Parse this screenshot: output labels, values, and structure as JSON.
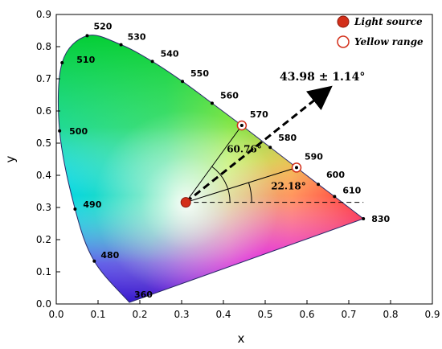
{
  "chart_data": {
    "type": "scatter",
    "xlabel": "x",
    "ylabel": "y",
    "xlim": [
      0.0,
      0.9
    ],
    "ylim": [
      0.0,
      0.9
    ],
    "x_ticks": [
      "0.0",
      "0.1",
      "0.2",
      "0.3",
      "0.4",
      "0.5",
      "0.6",
      "0.7",
      "0.8",
      "0.9"
    ],
    "y_ticks": [
      "0.0",
      "0.1",
      "0.2",
      "0.3",
      "0.4",
      "0.5",
      "0.6",
      "0.7",
      "0.8",
      "0.9"
    ],
    "grid": false,
    "legend_position": "top-right",
    "legend": [
      "Light source",
      "Yellow range"
    ],
    "locus_points": [
      {
        "label": "360",
        "x": 0.175,
        "y": 0.005
      },
      {
        "label": "480",
        "x": 0.091,
        "y": 0.133
      },
      {
        "label": "490",
        "x": 0.045,
        "y": 0.295
      },
      {
        "label": "500",
        "x": 0.008,
        "y": 0.538
      },
      {
        "label": "510",
        "x": 0.014,
        "y": 0.75
      },
      {
        "label": "520",
        "x": 0.074,
        "y": 0.834
      },
      {
        "label": "530",
        "x": 0.155,
        "y": 0.806
      },
      {
        "label": "540",
        "x": 0.23,
        "y": 0.754
      },
      {
        "label": "550",
        "x": 0.302,
        "y": 0.692
      },
      {
        "label": "560",
        "x": 0.373,
        "y": 0.624
      },
      {
        "label": "570",
        "x": 0.444,
        "y": 0.555
      },
      {
        "label": "580",
        "x": 0.512,
        "y": 0.487
      },
      {
        "label": "590",
        "x": 0.575,
        "y": 0.424
      },
      {
        "label": "600",
        "x": 0.627,
        "y": 0.372
      },
      {
        "label": "610",
        "x": 0.666,
        "y": 0.334
      },
      {
        "label": "830",
        "x": 0.735,
        "y": 0.265
      }
    ],
    "light_source": {
      "x": 0.31,
      "y": 0.316
    },
    "yellow_range": [
      {
        "x": 0.444,
        "y": 0.555
      },
      {
        "x": 0.575,
        "y": 0.424
      }
    ],
    "angles": [
      "60.76°",
      "22.18°"
    ],
    "arrow_label": "43.98 ± 1.14°",
    "colors": {
      "light_source": "#d32f1a",
      "light_source_edge": "#8b1a0d",
      "yellow_range_edge": "#d32f1a",
      "locus_outline": "#2a2a6a"
    }
  }
}
